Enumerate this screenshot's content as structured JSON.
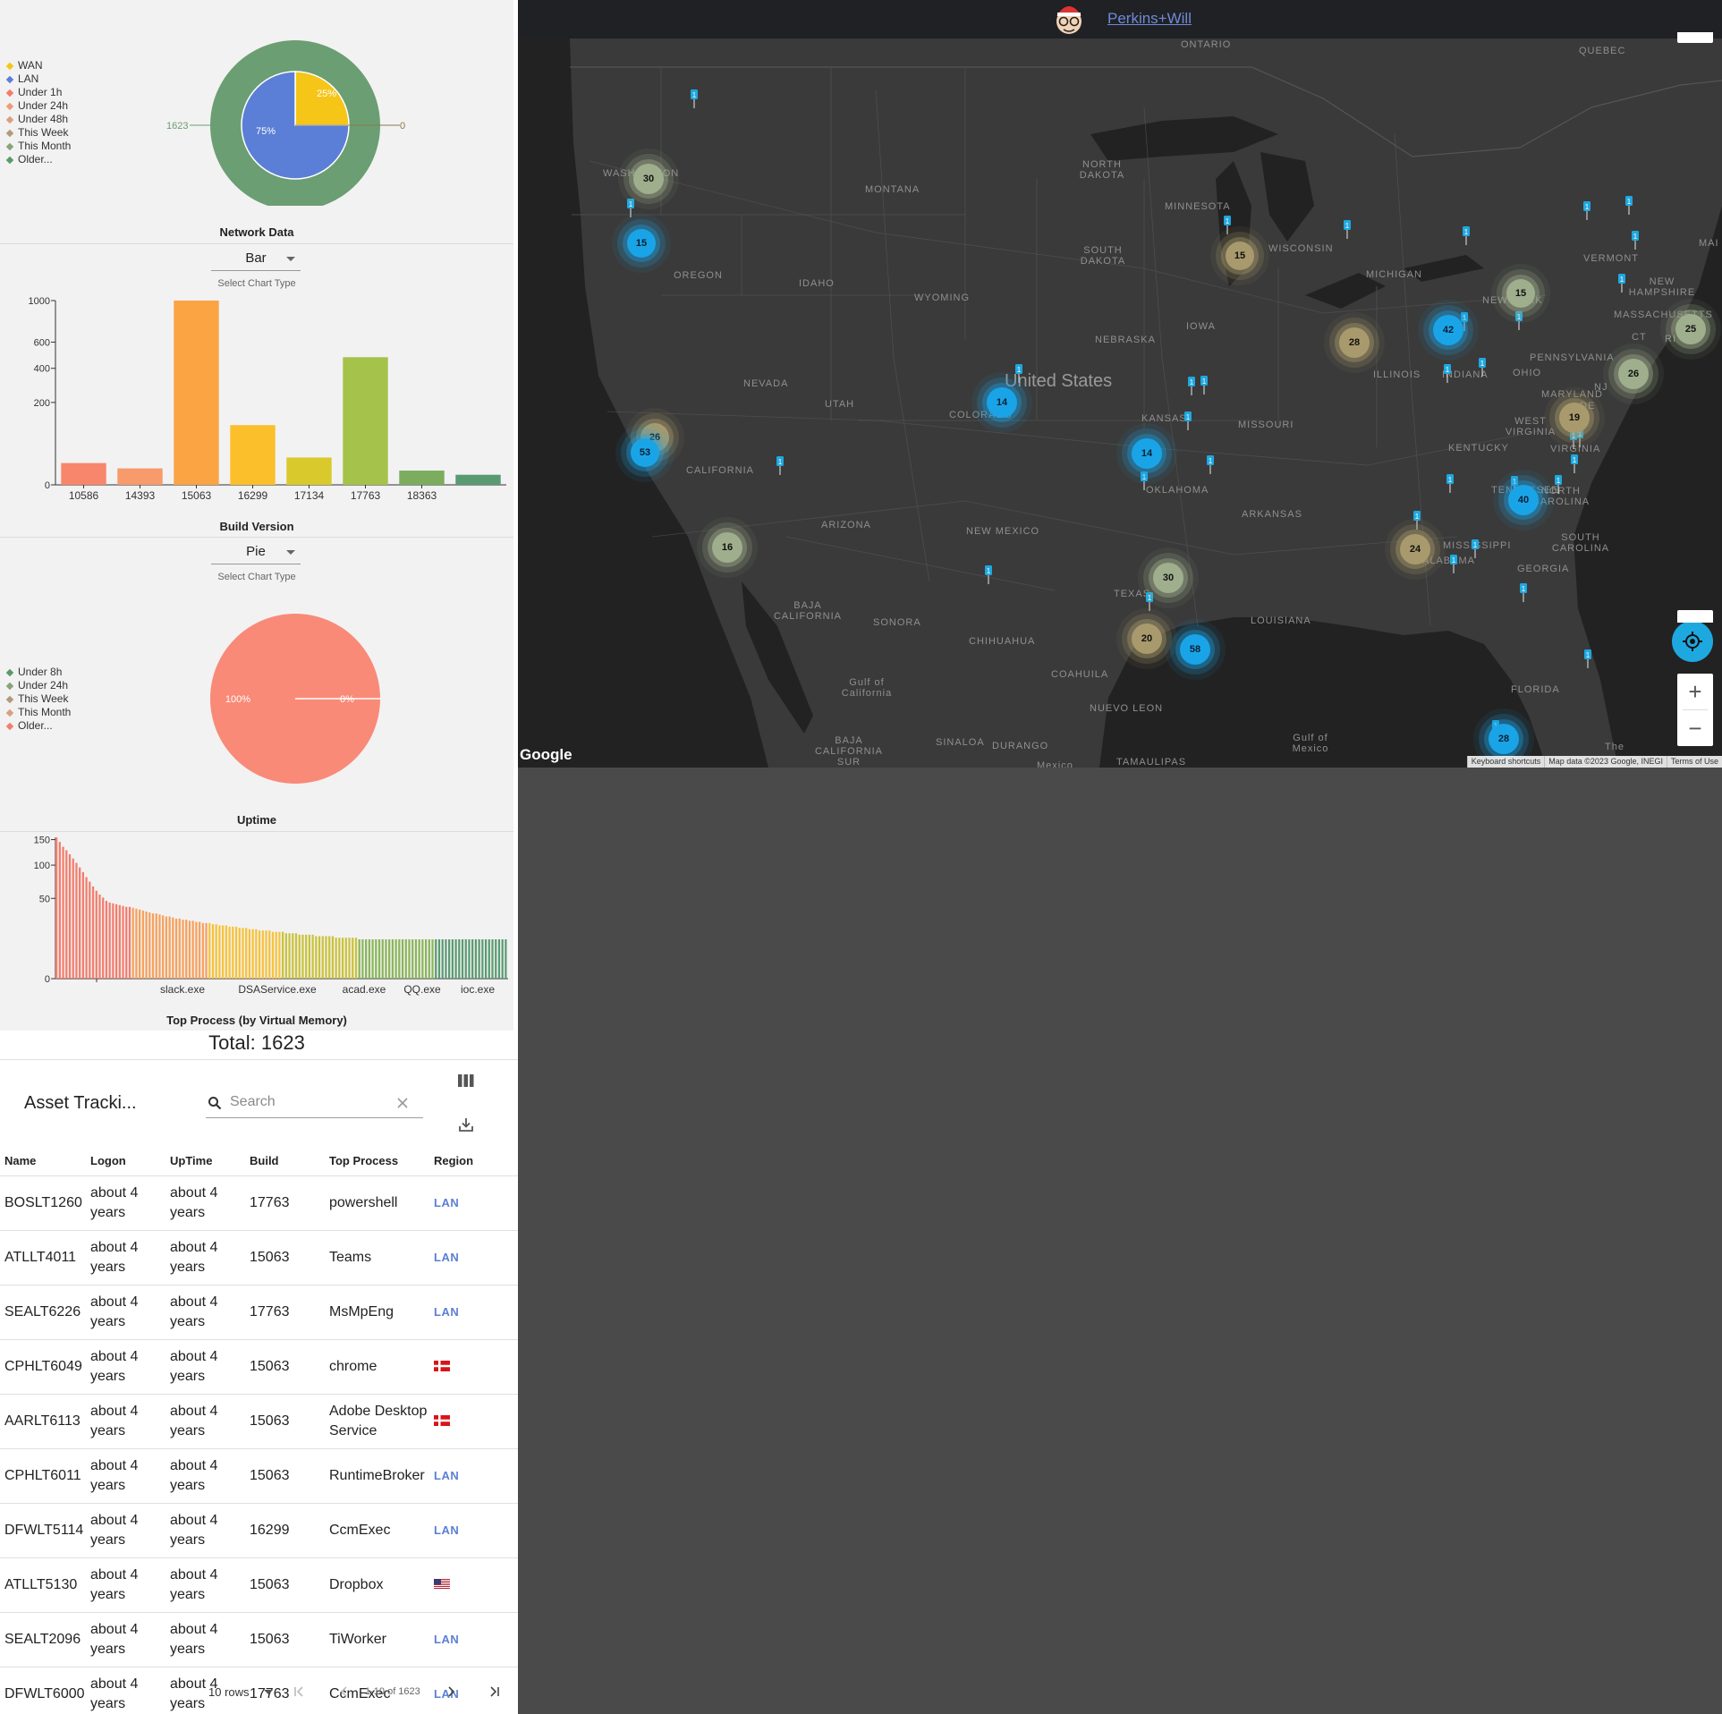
{
  "network_panel": {
    "title": "Network Data",
    "legend": [
      {
        "label": "WAN",
        "color": "#f5c518"
      },
      {
        "label": "LAN",
        "color": "#5b7fd6"
      },
      {
        "label": "Under 1h",
        "color": "#f47c6c"
      },
      {
        "label": "Under 24h",
        "color": "#f09a7a"
      },
      {
        "label": "Under 48h",
        "color": "#d8a080"
      },
      {
        "label": "This Week",
        "color": "#b59a7a"
      },
      {
        "label": "This Month",
        "color": "#8aa37a"
      },
      {
        "label": "Older...",
        "color": "#5a9a6a"
      }
    ],
    "outer_left_label": "1623",
    "outer_right_label": "0",
    "inner_labels": [
      "25%",
      "75%"
    ],
    "select_value": "Bar",
    "select_help": "Select Chart Type"
  },
  "build_panel": {
    "title": "Build Version",
    "select_value": "Pie",
    "select_help": "Select Chart Type"
  },
  "uptime_panel": {
    "title": "Uptime",
    "legend": [
      {
        "label": "Under 8h",
        "color": "#5a9a6a"
      },
      {
        "label": "Under 24h",
        "color": "#8aa37a"
      },
      {
        "label": "This Week",
        "color": "#b59a7a"
      },
      {
        "label": "This Month",
        "color": "#d8a080"
      },
      {
        "label": "Older...",
        "color": "#f47c6c"
      }
    ],
    "slice_labels": [
      "100%",
      "0%"
    ]
  },
  "process_panel": {
    "title": "Top Process (by Virtual Memory)"
  },
  "chart_data": [
    {
      "type": "pie",
      "title": "Network Data",
      "inner_ring": [
        {
          "label": "WAN",
          "value": 25,
          "color": "#f5c518"
        },
        {
          "label": "LAN",
          "value": 75,
          "color": "#5b7fd6"
        }
      ],
      "outer_ring": [
        {
          "label": "Older...",
          "value": 1623,
          "color": "#6b9e73"
        },
        {
          "label": "other",
          "value": 0
        }
      ]
    },
    {
      "type": "bar",
      "title": "Build Version",
      "categories": [
        "10586",
        "14393",
        "15063",
        "16299",
        "17134",
        "17763",
        "18363",
        ""
      ],
      "tick_labels": [
        "10586",
        "14393",
        "15063",
        "16299",
        "17134",
        "17763",
        "18363"
      ],
      "values": [
        14,
        8,
        1000,
        105,
        22,
        480,
        6,
        3
      ],
      "colors": [
        "#f7866c",
        "#f79a6c",
        "#fba444",
        "#fbbf2c",
        "#d9c92c",
        "#a5c24a",
        "#7cad5e",
        "#5a9a72"
      ],
      "yticks": [
        0,
        200,
        400,
        600,
        1000
      ],
      "ylim": [
        0,
        1000
      ]
    },
    {
      "type": "pie",
      "title": "Uptime",
      "slices": [
        {
          "label": "Older...",
          "value": 100,
          "color": "#f98a78"
        },
        {
          "label": "Under 8h",
          "value": 0
        }
      ]
    },
    {
      "type": "bar",
      "title": "Top Process (by Virtual Memory)",
      "x_tick_labels": [
        "slack.exe",
        "DSAService.exe",
        "acad.exe",
        "QQ.exe",
        "ioc.exe"
      ],
      "yticks": [
        0,
        50,
        100,
        150
      ],
      "ylim": [
        0,
        150
      ],
      "values": [
        155,
        145,
        135,
        128,
        120,
        112,
        104,
        96,
        88,
        80,
        73,
        66,
        60,
        55,
        51,
        47,
        45,
        44,
        43,
        42,
        41,
        40,
        40,
        39,
        38,
        37,
        36,
        35,
        34,
        33,
        33,
        32,
        31,
        30,
        30,
        29,
        28,
        28,
        27,
        27,
        26,
        26,
        25,
        25,
        24,
        24,
        24,
        23,
        23,
        22,
        22,
        22,
        21,
        21,
        21,
        20,
        20,
        20,
        19,
        19,
        19,
        18,
        18,
        18,
        18,
        17,
        17,
        17,
        17,
        16,
        16,
        16,
        16,
        15,
        15,
        15,
        15,
        15,
        14,
        14,
        14,
        14,
        14,
        14,
        13,
        13,
        13,
        13,
        13,
        13,
        13,
        12,
        12,
        12,
        12,
        12,
        12,
        12,
        12,
        12,
        12,
        12,
        12,
        12,
        12,
        12,
        12,
        12,
        12,
        12,
        12,
        12,
        12,
        12,
        12,
        12,
        12,
        12,
        12,
        12,
        12,
        12,
        12,
        12,
        12,
        12,
        12,
        12,
        12,
        12,
        12,
        12,
        12,
        12,
        12,
        12
      ]
    }
  ],
  "total": "Total: 1623",
  "table": {
    "title": "Asset Tracki...",
    "search_placeholder": "Search",
    "columns": [
      "Name",
      "Logon",
      "UpTime",
      "Build",
      "Top Process",
      "Region"
    ],
    "rows": [
      {
        "name": "BOSLT1260",
        "logon": "about 4 years",
        "uptime": "about 4 years",
        "build": "17763",
        "process": "powershell",
        "region": "LAN",
        "flag": ""
      },
      {
        "name": "ATLLT4011",
        "logon": "about 4 years",
        "uptime": "about 4 years",
        "build": "15063",
        "process": "Teams",
        "region": "LAN",
        "flag": ""
      },
      {
        "name": "SEALT6226",
        "logon": "about 4 years",
        "uptime": "about 4 years",
        "build": "17763",
        "process": "MsMpEng",
        "region": "LAN",
        "flag": ""
      },
      {
        "name": "CPHLT6049",
        "logon": "about 4 years",
        "uptime": "about 4 years",
        "build": "15063",
        "process": "chrome",
        "region": "",
        "flag": "dk"
      },
      {
        "name": "AARLT6113",
        "logon": "about 4 years",
        "uptime": "about 4 years",
        "build": "15063",
        "process": "Adobe Desktop Service",
        "region": "",
        "flag": "dk"
      },
      {
        "name": "CPHLT6011",
        "logon": "about 4 years",
        "uptime": "about 4 years",
        "build": "15063",
        "process": "RuntimeBroker",
        "region": "LAN",
        "flag": ""
      },
      {
        "name": "DFWLT5114",
        "logon": "about 4 years",
        "uptime": "about 4 years",
        "build": "16299",
        "process": "CcmExec",
        "region": "LAN",
        "flag": ""
      },
      {
        "name": "ATLLT5130",
        "logon": "about 4 years",
        "uptime": "about 4 years",
        "build": "15063",
        "process": "Dropbox",
        "region": "",
        "flag": "us"
      },
      {
        "name": "SEALT2096",
        "logon": "about 4 years",
        "uptime": "about 4 years",
        "build": "15063",
        "process": "TiWorker",
        "region": "LAN",
        "flag": ""
      },
      {
        "name": "DFWLT6000",
        "logon": "about 4 years",
        "uptime": "about 4 years",
        "build": "17763",
        "process": "CcmExec",
        "region": "LAN",
        "flag": ""
      }
    ],
    "pager": {
      "rows_label": "10 rows",
      "range": "1-10 of 1623"
    }
  },
  "map": {
    "org_link": "Perkins+Will",
    "country_label": "United States",
    "labels": [
      {
        "text": "ONTARIO"
      },
      {
        "text": "QUEBEC"
      },
      {
        "text": "WASHINGTON"
      },
      {
        "text": "MONTANA"
      },
      {
        "text": "NORTH DAKOTA"
      },
      {
        "text": "MINNESOTA"
      },
      {
        "text": "SOUTH DAKOTA"
      },
      {
        "text": "WISCONSIN"
      },
      {
        "text": "MICHIGAN"
      },
      {
        "text": "VERMONT"
      },
      {
        "text": "NEW HAMPSHIRE"
      },
      {
        "text": "OREGON"
      },
      {
        "text": "IDAHO"
      },
      {
        "text": "WYOMING"
      },
      {
        "text": "NEW YORK"
      },
      {
        "text": "MASSACHUSETTS"
      },
      {
        "text": "IOWA"
      },
      {
        "text": "NEBRASKA"
      },
      {
        "text": "PENNSYLVANIA"
      },
      {
        "text": "CT"
      },
      {
        "text": "RI"
      },
      {
        "text": "NEVADA"
      },
      {
        "text": "ILLINOIS"
      },
      {
        "text": "INDIANA"
      },
      {
        "text": "OHIO"
      },
      {
        "text": "NJ"
      },
      {
        "text": "UTAH"
      },
      {
        "text": "COLORADO"
      },
      {
        "text": "KANSAS"
      },
      {
        "text": "MISSOURI"
      },
      {
        "text": "MARYLAND"
      },
      {
        "text": "DE"
      },
      {
        "text": "WEST VIRGINIA"
      },
      {
        "text": "KENTUCKY"
      },
      {
        "text": "VIRGINIA"
      },
      {
        "text": "CALIFORNIA"
      },
      {
        "text": "OKLAHOMA"
      },
      {
        "text": "TENNESSEE"
      },
      {
        "text": "ARKANSAS"
      },
      {
        "text": "NORTH CAROLINA"
      },
      {
        "text": "ARIZONA"
      },
      {
        "text": "NEW MEXICO"
      },
      {
        "text": "MISSISSIPPI"
      },
      {
        "text": "ALABAMA"
      },
      {
        "text": "SOUTH CAROLINA"
      },
      {
        "text": "GEORGIA"
      },
      {
        "text": "TEXAS"
      },
      {
        "text": "LOUISIANA"
      },
      {
        "text": "BAJA CALIFORNIA"
      },
      {
        "text": "SONORA"
      },
      {
        "text": "CHIHUAHUA"
      },
      {
        "text": "Gulf of California"
      },
      {
        "text": "COAHUILA"
      },
      {
        "text": "NUEVO LEON"
      },
      {
        "text": "FLORIDA"
      },
      {
        "text": "Gulf of Mexico"
      },
      {
        "text": "BAJA CALIFORNIA SUR"
      },
      {
        "text": "SINALOA"
      },
      {
        "text": "DURANGO"
      },
      {
        "text": "TAMAULIPAS"
      },
      {
        "text": "Mexico"
      },
      {
        "text": "The"
      },
      {
        "text": "MAI"
      }
    ],
    "clusters": [
      {
        "count": "30",
        "style": "sage"
      },
      {
        "count": "15",
        "style": "blue"
      },
      {
        "count": "15",
        "style": "tan"
      },
      {
        "count": "15",
        "style": "sage"
      },
      {
        "count": "42",
        "style": "blue"
      },
      {
        "count": "28",
        "style": "tan"
      },
      {
        "count": "25",
        "style": "sage"
      },
      {
        "count": "26",
        "style": "sage"
      },
      {
        "count": "14",
        "style": "blue"
      },
      {
        "count": "19",
        "style": "tan"
      },
      {
        "count": "26",
        "style": "tan"
      },
      {
        "count": "53",
        "style": "blue"
      },
      {
        "count": "14",
        "style": "blue"
      },
      {
        "count": "40",
        "style": "blue"
      },
      {
        "count": "16",
        "style": "sage"
      },
      {
        "count": "24",
        "style": "tan"
      },
      {
        "count": "30",
        "style": "sage"
      },
      {
        "count": "20",
        "style": "tan"
      },
      {
        "count": "58",
        "style": "blue"
      },
      {
        "count": "28",
        "style": "blue"
      }
    ],
    "pin_count_label": "1",
    "google_logo": "Google",
    "attribution": [
      "Keyboard shortcuts",
      "Map data ©2023 Google, INEGI",
      "Terms of Use"
    ],
    "zoom_in": "+",
    "zoom_out": "−",
    "colors": {
      "water": "#222222",
      "land": "#3a3a3a",
      "accent": "#1ea8e0"
    }
  }
}
